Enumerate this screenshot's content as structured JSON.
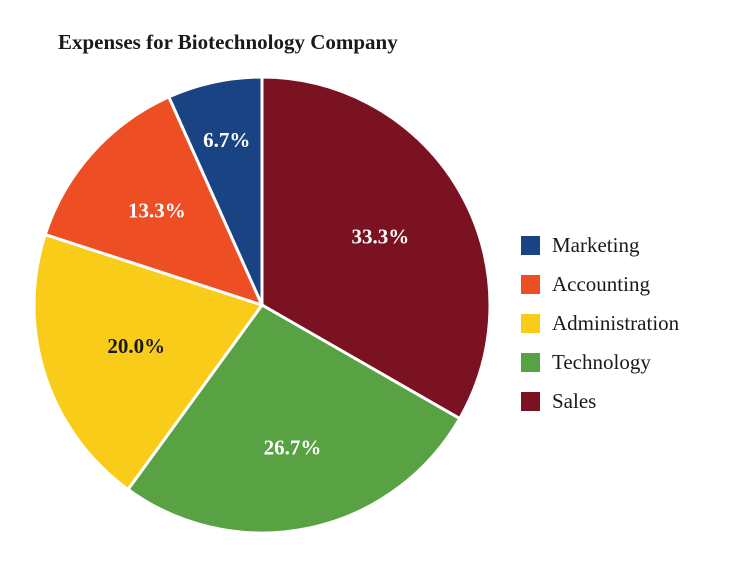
{
  "chart_data": {
    "type": "pie",
    "title": "Expenses for Biotechnology Company",
    "slices": [
      {
        "name": "Marketing",
        "value": 6.7,
        "label": "6.7%",
        "color": "#1a4384",
        "label_color": "#ffffff"
      },
      {
        "name": "Accounting",
        "value": 13.3,
        "label": "13.3%",
        "color": "#ee4e23",
        "label_color": "#ffffff"
      },
      {
        "name": "Administration",
        "value": 20.0,
        "label": "20.0%",
        "color": "#f9cc1a",
        "label_color": "#1a1a1a"
      },
      {
        "name": "Technology",
        "value": 26.7,
        "label": "26.7%",
        "color": "#58a244",
        "label_color": "#ffffff"
      },
      {
        "name": "Sales",
        "value": 33.3,
        "label": "33.3%",
        "color": "#7b1222",
        "label_color": "#ffffff"
      }
    ],
    "direction": "clockwise",
    "legend_position": "right"
  }
}
